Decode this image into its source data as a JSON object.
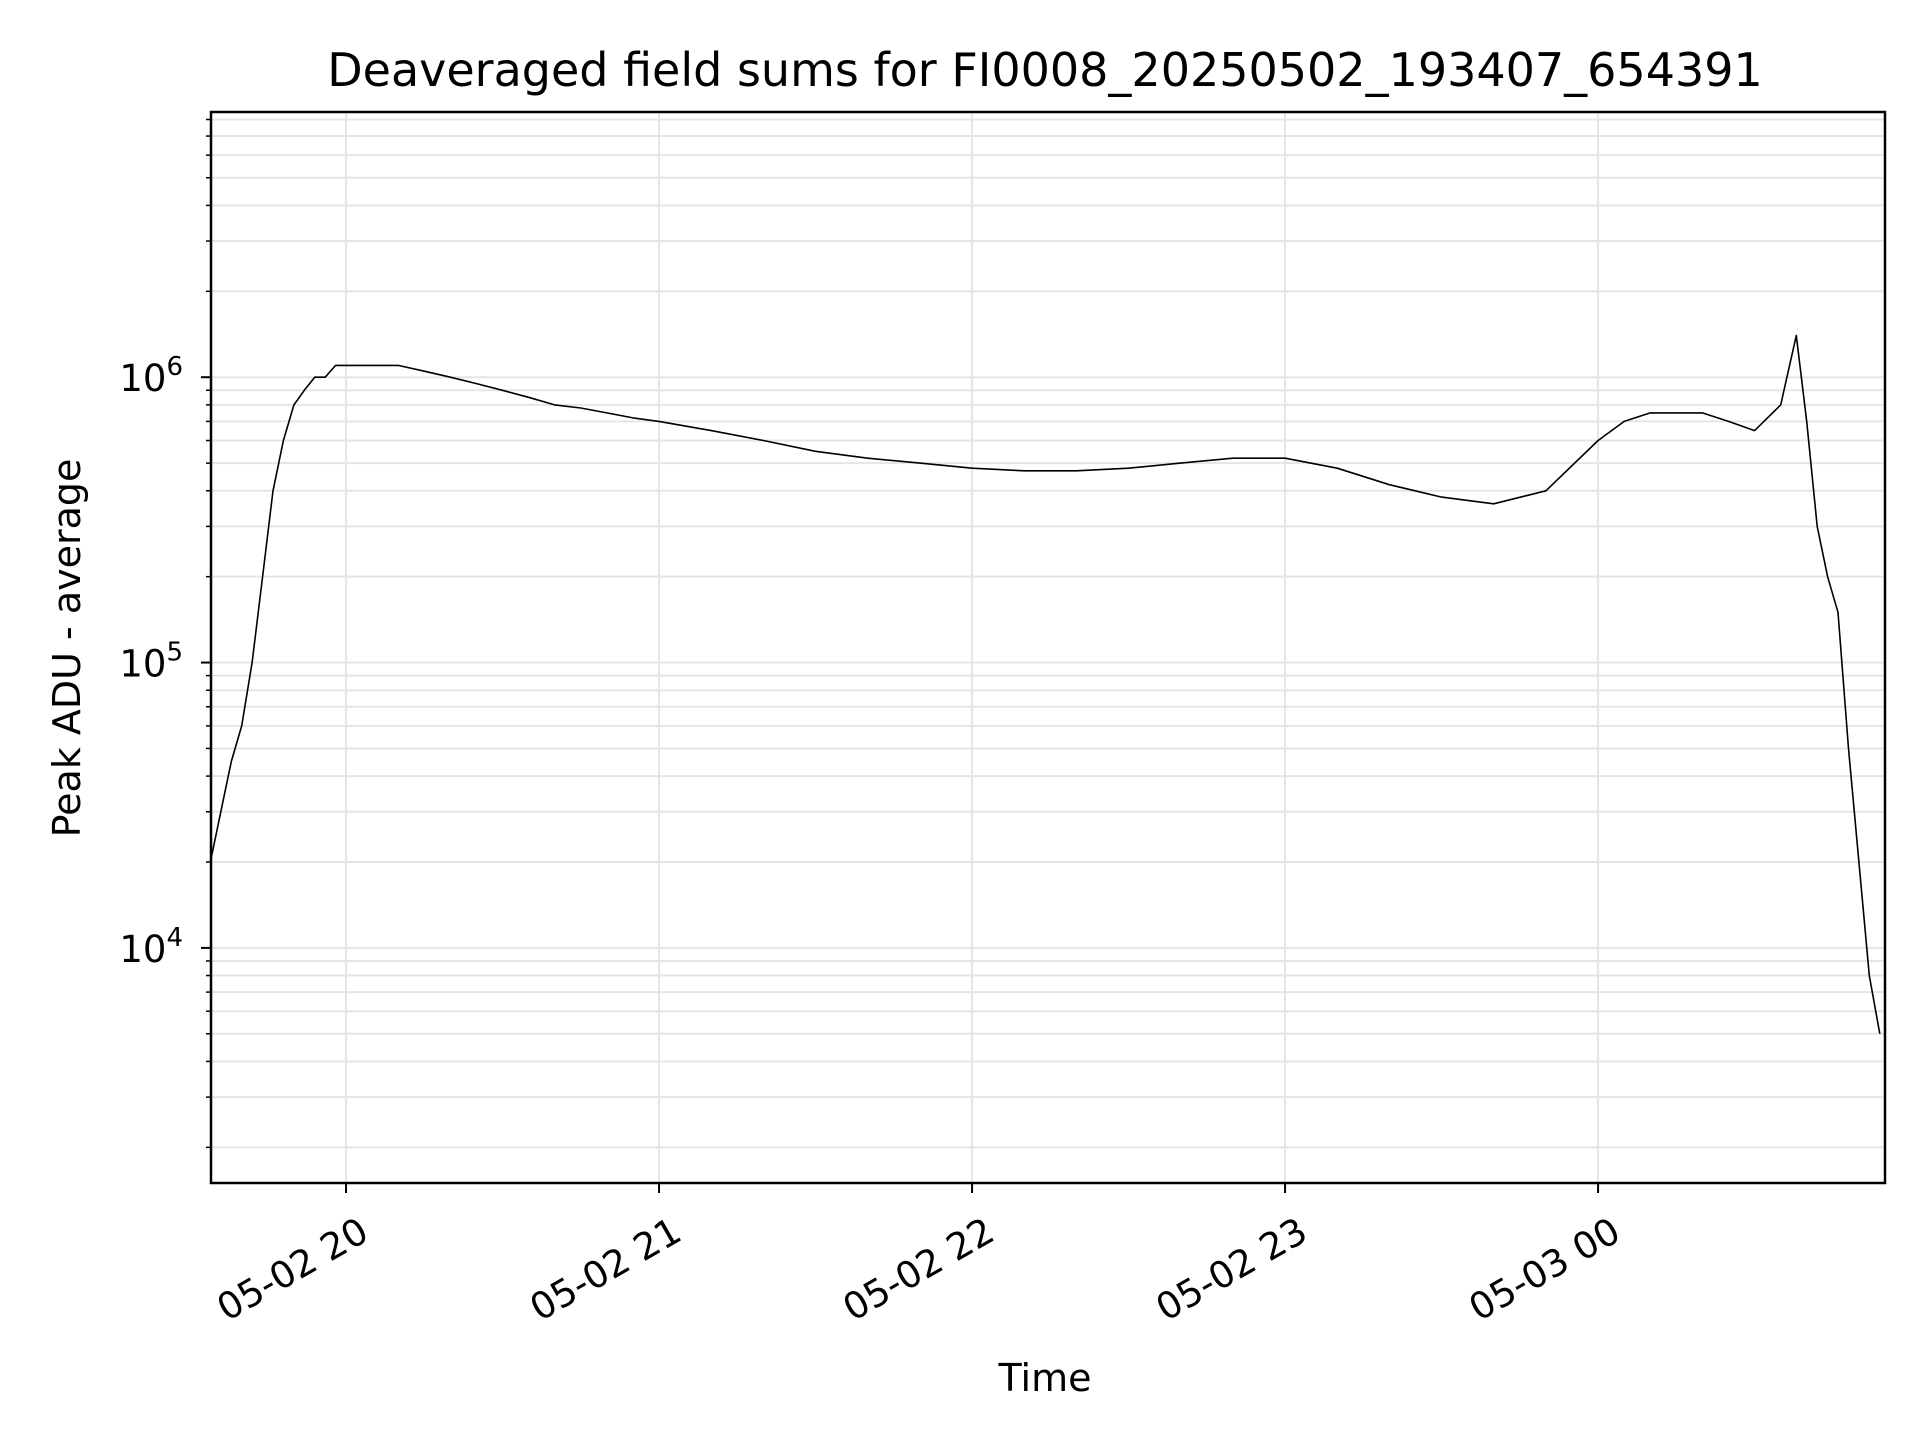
{
  "chart_data": {
    "type": "line",
    "title": "Deaveraged field sums for FI0008_20250502_193407_654391",
    "xlabel": "Time",
    "ylabel": "Peak ADU - average",
    "yscale": "log",
    "ylim": [
      1500,
      8500000
    ],
    "xlim": [
      "2025-05-02 19:34:07",
      "2025-05-03 00:55:00"
    ],
    "grid": true,
    "line_color": "#000000",
    "grid_color": "#e5e5e5",
    "x_ticks": [
      {
        "value": "2025-05-02 20:00",
        "label": "05-02 20"
      },
      {
        "value": "2025-05-02 21:00",
        "label": "05-02 21"
      },
      {
        "value": "2025-05-02 22:00",
        "label": "05-02 22"
      },
      {
        "value": "2025-05-02 23:00",
        "label": "05-02 23"
      },
      {
        "value": "2025-05-03 00:00",
        "label": "05-03 00"
      }
    ],
    "y_ticks": [
      {
        "value": 10000,
        "base": "10",
        "exp": "4"
      },
      {
        "value": 100000,
        "base": "10",
        "exp": "5"
      },
      {
        "value": 1000000,
        "base": "10",
        "exp": "6"
      }
    ],
    "series": [
      {
        "x": [
          "2025-05-02 19:34",
          "2025-05-02 19:36",
          "2025-05-02 19:38",
          "2025-05-02 19:40",
          "2025-05-02 19:42",
          "2025-05-02 19:44",
          "2025-05-02 19:46",
          "2025-05-02 19:48",
          "2025-05-02 19:50",
          "2025-05-02 19:52",
          "2025-05-02 19:54",
          "2025-05-02 19:56",
          "2025-05-02 19:58",
          "2025-05-02 20:00",
          "2025-05-02 20:05",
          "2025-05-02 20:10",
          "2025-05-02 20:15",
          "2025-05-02 20:20",
          "2025-05-02 20:25",
          "2025-05-02 20:30",
          "2025-05-02 20:35",
          "2025-05-02 20:40",
          "2025-05-02 20:45",
          "2025-05-02 20:50",
          "2025-05-02 20:55",
          "2025-05-02 21:00",
          "2025-05-02 21:10",
          "2025-05-02 21:20",
          "2025-05-02 21:30",
          "2025-05-02 21:40",
          "2025-05-02 21:50",
          "2025-05-02 22:00",
          "2025-05-02 22:10",
          "2025-05-02 22:20",
          "2025-05-02 22:30",
          "2025-05-02 22:40",
          "2025-05-02 22:50",
          "2025-05-02 23:00",
          "2025-05-02 23:10",
          "2025-05-02 23:20",
          "2025-05-02 23:30",
          "2025-05-02 23:40",
          "2025-05-02 23:50",
          "2025-05-03 00:00",
          "2025-05-03 00:05",
          "2025-05-03 00:10",
          "2025-05-03 00:15",
          "2025-05-03 00:20",
          "2025-05-03 00:25",
          "2025-05-03 00:30",
          "2025-05-03 00:35",
          "2025-05-03 00:38",
          "2025-05-03 00:40",
          "2025-05-03 00:42",
          "2025-05-03 00:44",
          "2025-05-03 00:46",
          "2025-05-03 00:48",
          "2025-05-03 00:50",
          "2025-05-03 00:52",
          "2025-05-03 00:54"
        ],
        "y": [
          20000,
          30000,
          45000,
          60000,
          100000,
          200000,
          400000,
          600000,
          800000,
          900000,
          1000000,
          1000000,
          1100000,
          1100000,
          1100000,
          1100000,
          1050000,
          1000000,
          950000,
          900000,
          850000,
          800000,
          780000,
          750000,
          720000,
          700000,
          650000,
          600000,
          550000,
          520000,
          500000,
          480000,
          470000,
          470000,
          480000,
          500000,
          520000,
          520000,
          480000,
          420000,
          380000,
          360000,
          400000,
          600000,
          700000,
          750000,
          750000,
          750000,
          700000,
          650000,
          800000,
          1400000,
          700000,
          300000,
          200000,
          150000,
          50000,
          20000,
          8000,
          5000
        ]
      }
    ]
  }
}
